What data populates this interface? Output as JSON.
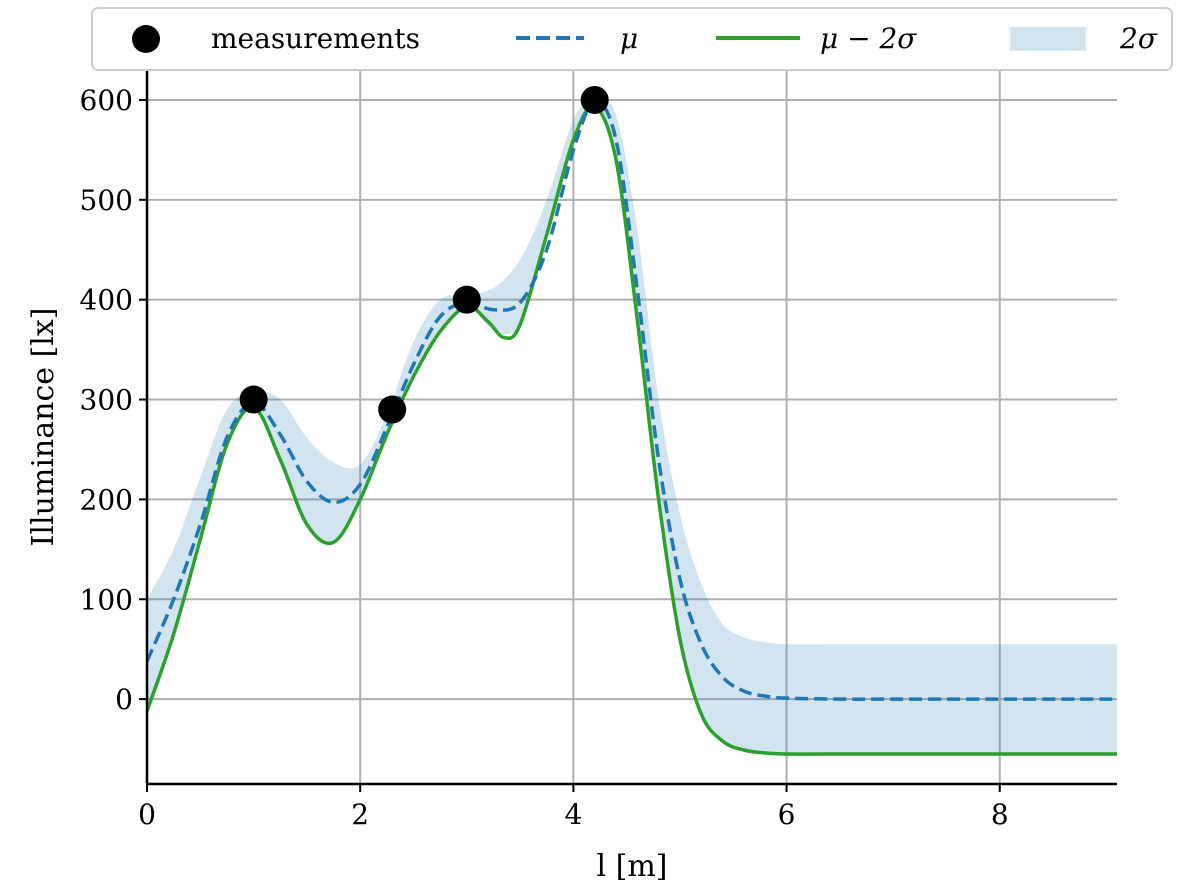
{
  "chart_data": {
    "type": "line",
    "xlabel": "l [m]",
    "ylabel": "Illuminance [lx]",
    "xlim": [
      0,
      9.1
    ],
    "ylim": [
      -85,
      630
    ],
    "x_ticks": [
      0,
      2,
      4,
      6,
      8
    ],
    "y_ticks": [
      0,
      100,
      200,
      300,
      400,
      500,
      600
    ],
    "grid": true,
    "legend_position": "top",
    "measurements": {
      "name": "measurements",
      "color": "#000000",
      "points": [
        {
          "x": 1.0,
          "y": 300
        },
        {
          "x": 2.3,
          "y": 290
        },
        {
          "x": 3.0,
          "y": 400
        },
        {
          "x": 4.2,
          "y": 600
        }
      ]
    },
    "mean": {
      "name": "μ",
      "color": "#1f77b4",
      "style": "dashed",
      "x": [
        0,
        0.25,
        0.5,
        0.75,
        1.0,
        1.25,
        1.5,
        1.75,
        2.0,
        2.25,
        2.5,
        2.75,
        3.0,
        3.25,
        3.5,
        3.75,
        4.0,
        4.2,
        4.4,
        4.6,
        4.8,
        5.0,
        5.2,
        5.4,
        5.6,
        5.8,
        6.0,
        6.5,
        7.0,
        8.0,
        9.1
      ],
      "y": [
        38,
        100,
        175,
        262,
        297,
        265,
        218,
        197,
        215,
        272,
        335,
        383,
        397,
        390,
        397,
        450,
        550,
        598,
        560,
        410,
        240,
        120,
        55,
        22,
        8,
        3,
        1,
        0,
        0,
        0,
        0
      ]
    },
    "lower_bound": {
      "name": "μ − 2σ",
      "color": "#2ca02c",
      "x": [
        0,
        0.25,
        0.5,
        0.75,
        1.0,
        1.25,
        1.5,
        1.75,
        2.0,
        2.25,
        2.5,
        2.75,
        3.0,
        3.2,
        3.35,
        3.5,
        3.75,
        4.0,
        4.2,
        4.4,
        4.6,
        4.8,
        5.0,
        5.2,
        5.4,
        5.6,
        5.8,
        6.0,
        6.5,
        7.0,
        8.0,
        9.1
      ],
      "y": [
        -12,
        65,
        160,
        255,
        292,
        240,
        175,
        157,
        200,
        265,
        323,
        368,
        393,
        378,
        362,
        375,
        465,
        560,
        593,
        540,
        380,
        200,
        60,
        -15,
        -42,
        -51,
        -54,
        -55,
        -55,
        -55,
        -55,
        -55
      ]
    },
    "band": {
      "name": "2σ",
      "color": "#1f77b4",
      "opacity": 0.2,
      "x": [
        0,
        0.25,
        0.5,
        0.75,
        1.0,
        1.25,
        1.5,
        1.75,
        2.0,
        2.25,
        2.5,
        2.75,
        3.0,
        3.25,
        3.5,
        3.75,
        4.0,
        4.2,
        4.4,
        4.6,
        4.8,
        5.0,
        5.2,
        5.4,
        5.6,
        5.8,
        6.0,
        6.5,
        7.0,
        8.0,
        9.1
      ],
      "lower": [
        -12,
        65,
        160,
        255,
        292,
        240,
        175,
        157,
        200,
        265,
        323,
        368,
        393,
        370,
        375,
        465,
        560,
        593,
        540,
        380,
        200,
        60,
        -15,
        -42,
        -51,
        -54,
        -55,
        -55,
        -55,
        -55,
        -55
      ],
      "upper": [
        100,
        150,
        222,
        290,
        308,
        300,
        262,
        237,
        235,
        285,
        358,
        400,
        405,
        412,
        440,
        500,
        580,
        603,
        585,
        470,
        300,
        185,
        115,
        75,
        62,
        57,
        55,
        55,
        55,
        55,
        55
      ]
    }
  }
}
